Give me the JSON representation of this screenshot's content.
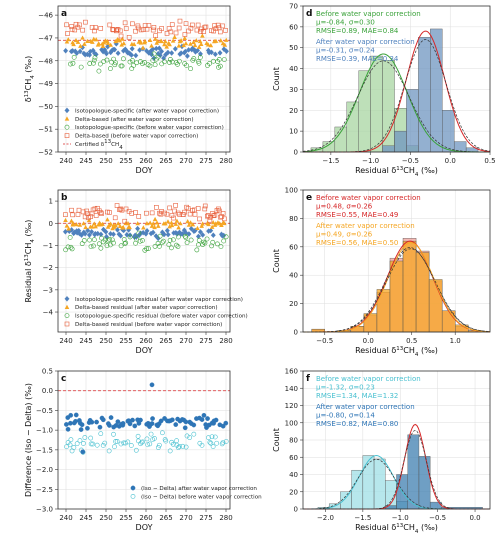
{
  "colors": {
    "iso_after": "#4f81bd",
    "delta_after": "#f5a623",
    "iso_before": "#3aa23a",
    "delta_before": "#e8603c",
    "certified": "#d62728",
    "hist_green": "#a8d5a2",
    "hist_blue": "#6f95c0",
    "hist_red": "#f2a09a",
    "hist_orange": "#f5a623",
    "hist_cyan": "#9fdfe6",
    "hist_dblue": "#3f7fb0",
    "diff_after": "#2e75b6",
    "diff_before": "#48c0d0"
  },
  "chart_data": [
    {
      "id": "a",
      "panel_label": "a",
      "type": "scatter",
      "xlabel": "DOY",
      "ylabel": "δ13CH4 (‰)",
      "ylabel_parts": [
        "δ",
        "13",
        "CH",
        "4",
        " (‰)"
      ],
      "xlim": [
        238,
        281
      ],
      "ylim": [
        -52,
        -45.6
      ],
      "xticks": [
        240,
        245,
        250,
        255,
        260,
        265,
        270,
        275,
        280
      ],
      "yticks": [
        -52,
        -51,
        -50,
        -49,
        -48,
        -47,
        -46
      ],
      "grid": true,
      "legend_position": "lower-center",
      "reference_line": {
        "y": -47.1,
        "label": "Certified δ13CH4"
      },
      "series": [
        {
          "name": "Isotopologue-specific (after water vapor correction)",
          "marker": "diamond",
          "mean": -47.6,
          "spread": 0.22
        },
        {
          "name": "Delta-based (after water vapor correction)",
          "marker": "triangle",
          "mean": -47.2,
          "spread": 0.2
        },
        {
          "name": "Isotopologue-specific (before water vapor correction)",
          "marker": "circle-open",
          "mean": -48.05,
          "spread": 0.3
        },
        {
          "name": "Delta-based (before water vapor correction)",
          "marker": "square-open",
          "mean": -46.6,
          "spread": 0.28
        }
      ],
      "legend_entries": [
        "Isotopologue-specific (after water vapor correction)",
        "Delta-based (after water vapor correction)",
        "Isotopologue-specific (before water vapor correction)",
        "Delta-based (before water vapor correction)",
        "Certified δ13CH4"
      ]
    },
    {
      "id": "b",
      "panel_label": "b",
      "type": "scatter",
      "xlabel": "DOY",
      "ylabel": "Residual δ13CH4 (‰)",
      "ylabel_parts": [
        "Residual δ",
        "13",
        "CH",
        "4",
        " (‰)"
      ],
      "xlim": [
        238,
        281
      ],
      "ylim": [
        -4.9,
        1.5
      ],
      "xticks": [
        240,
        245,
        250,
        255,
        260,
        265,
        270,
        275,
        280
      ],
      "yticks": [
        -4,
        -3,
        -2,
        -1,
        0,
        1
      ],
      "grid": true,
      "legend_position": "lower-center",
      "reference_line": {
        "y": 0
      },
      "series": [
        {
          "name": "Isotopologue-specific residual (after water vapor correction)",
          "marker": "diamond",
          "mean": -0.45,
          "spread": 0.2
        },
        {
          "name": "Delta-based residual (after water vapor correction)",
          "marker": "triangle",
          "mean": -0.05,
          "spread": 0.18
        },
        {
          "name": "Isotopologue-specific residual (before water vapor correction)",
          "marker": "circle-open",
          "mean": -0.9,
          "spread": 0.3
        },
        {
          "name": "Delta-based residual (before water vapor correction)",
          "marker": "square-open",
          "mean": 0.5,
          "spread": 0.28
        }
      ],
      "legend_entries": [
        "Isotopologue-specific residual (after water vapor correction)",
        "Delta-based residual (after water vapor correction)",
        "Isotopologue-specific residual (before water vapor correction)",
        "Delta-based residual (before water vapor correction)"
      ]
    },
    {
      "id": "c",
      "panel_label": "c",
      "type": "scatter",
      "xlabel": "DOY",
      "ylabel": "Difference (Iso − Delta) (‰)",
      "xlim": [
        238,
        281
      ],
      "ylim": [
        -3.0,
        0.5
      ],
      "xticks": [
        240,
        245,
        250,
        255,
        260,
        265,
        270,
        275,
        280
      ],
      "yticks": [
        -3.0,
        -2.5,
        -2.0,
        -1.5,
        -1.0,
        -0.5,
        0.0,
        0.5
      ],
      "ytick_labels": [
        "−3.0",
        "−2.5",
        "−2.0",
        "−1.5",
        "−1.0",
        "−0.5",
        "0.0",
        "0.5"
      ],
      "grid": true,
      "legend_position": "lower-right",
      "reference_line": {
        "y": 0
      },
      "series": [
        {
          "name": "(Iso − Delta) after water vapor correction",
          "marker": "circle-filled",
          "mean": -0.8,
          "spread": 0.14
        },
        {
          "name": "(Iso − Delta) before water vapor correction",
          "marker": "circle-open",
          "mean": -1.32,
          "spread": 0.22
        }
      ],
      "legend_entries": [
        "(Iso − Delta) after water vapor correction",
        "(Iso − Delta) before water vapor correction"
      ]
    },
    {
      "id": "d",
      "panel_label": "d",
      "type": "bar",
      "subtype": "histogram",
      "xlabel": "Residual δ13CH4 (‰)",
      "xlabel_parts": [
        "Residual δ",
        "13",
        "CH",
        "4",
        " (‰)"
      ],
      "ylabel": "Count",
      "xlim": [
        -1.85,
        0.5
      ],
      "ylim": [
        0,
        70
      ],
      "xticks": [
        -1.5,
        -1.0,
        -0.5,
        0.0,
        0.5
      ],
      "xtick_labels": [
        "−1.5",
        "−1.0",
        "−0.5",
        "0.0",
        "0.5"
      ],
      "yticks": [
        0,
        10,
        20,
        30,
        40,
        50,
        60,
        70
      ],
      "grid": true,
      "series": [
        {
          "name": "Before water vapor correction",
          "color_key": "hist_green",
          "bin_edges": [
            -1.75,
            -1.6,
            -1.45,
            -1.3,
            -1.15,
            -1.0,
            -0.85,
            -0.7,
            -0.55,
            -0.4
          ],
          "counts": [
            2,
            5,
            12,
            24,
            39,
            46,
            44,
            21,
            3
          ]
        },
        {
          "name": "After water vapor correction",
          "color_key": "hist_blue",
          "bin_edges": [
            -0.85,
            -0.7,
            -0.55,
            -0.4,
            -0.25,
            -0.1,
            0.05,
            0.2,
            0.35
          ],
          "counts": [
            3,
            10,
            30,
            55,
            59,
            20,
            5,
            2
          ]
        }
      ],
      "fits": [
        {
          "mu": -0.84,
          "sigma": 0.3,
          "peak": 47,
          "color_key": "iso_before"
        },
        {
          "mu": -0.31,
          "sigma": 0.24,
          "peak": 58,
          "color_key": "certified"
        }
      ],
      "annotations": [
        {
          "title": "Before water vapor correction",
          "line1": "μ=-0.84, σ=0.30",
          "line2": "RMSE=0.89, MAE=0.84",
          "color_key": "iso_before"
        },
        {
          "title": "After water vapor correction",
          "line1": "μ=-0.31, σ=0.24",
          "line2": "RMSE=0.39, MAE=0.34",
          "color_key": "iso_after"
        }
      ]
    },
    {
      "id": "e",
      "panel_label": "e",
      "type": "bar",
      "subtype": "histogram",
      "xlabel": "Residual δ13CH4 (‰)",
      "xlabel_parts": [
        "Residual δ",
        "13",
        "CH",
        "4",
        " (‰)"
      ],
      "ylabel": "Count",
      "xlim": [
        -0.75,
        1.4
      ],
      "ylim": [
        0,
        100
      ],
      "xticks": [
        -0.5,
        0.0,
        0.5,
        1.0
      ],
      "xtick_labels": [
        "−0.5",
        "0.0",
        "0.5",
        "1.0"
      ],
      "yticks": [
        0,
        20,
        40,
        60,
        80,
        100
      ],
      "grid": true,
      "series": [
        {
          "name": "Before water vapor correction",
          "color_key": "hist_red",
          "bin_edges": [
            -0.65,
            -0.5,
            -0.35,
            -0.2,
            -0.05,
            0.1,
            0.25,
            0.4,
            0.55,
            0.7,
            0.85,
            1.0,
            1.15,
            1.3
          ],
          "counts": [
            2,
            0,
            1,
            4,
            12,
            28,
            52,
            66,
            57,
            36,
            15,
            4,
            1
          ]
        },
        {
          "name": "After water vapor correction",
          "color_key": "hist_orange",
          "bin_edges": [
            -0.65,
            -0.5,
            -0.35,
            -0.2,
            -0.05,
            0.1,
            0.25,
            0.4,
            0.55,
            0.7,
            0.85,
            1.0,
            1.15,
            1.3
          ],
          "counts": [
            2,
            0,
            1,
            4,
            13,
            30,
            50,
            64,
            56,
            37,
            15,
            5,
            1
          ]
        }
      ],
      "fits": [
        {
          "mu": 0.48,
          "sigma": 0.26,
          "peak": 64,
          "color_key": "certified"
        },
        {
          "mu": 0.49,
          "sigma": 0.26,
          "peak": 63,
          "color_key": "delta_after"
        }
      ],
      "annotations": [
        {
          "title": "Before water vapor correction",
          "line1": "μ=0.48, σ=0.26",
          "line2": "RMSE=0.55, MAE=0.49",
          "color_key": "certified"
        },
        {
          "title": "After water vapor correction",
          "line1": "μ=0.49, σ=0.26",
          "line2": "RMSE=0.56, MAE=0.50",
          "color_key": "delta_after"
        }
      ]
    },
    {
      "id": "f",
      "panel_label": "f",
      "type": "bar",
      "subtype": "histogram",
      "xlabel": "Residual δ13CH4 (‰)",
      "xlabel_parts": [
        "Residual δ",
        "13",
        "CH",
        "4",
        " (‰)"
      ],
      "ylabel": "Count",
      "xlim": [
        -2.3,
        0.2
      ],
      "ylim": [
        0,
        160
      ],
      "xticks": [
        -2.0,
        -1.5,
        -1.0,
        -0.5,
        0.0
      ],
      "xtick_labels": [
        "−2.0",
        "−1.5",
        "−1.0",
        "−0.5",
        "0.0"
      ],
      "yticks": [
        0,
        20,
        40,
        60,
        80,
        100,
        120,
        140,
        160
      ],
      "grid": true,
      "series": [
        {
          "name": "Before water vapor correction",
          "color_key": "hist_cyan",
          "bin_edges": [
            -2.1,
            -1.95,
            -1.8,
            -1.65,
            -1.5,
            -1.35,
            -1.2,
            -1.05,
            -0.9
          ],
          "counts": [
            2,
            6,
            20,
            45,
            62,
            58,
            33,
            9
          ]
        },
        {
          "name": "After water vapor correction",
          "color_key": "hist_dblue",
          "bin_edges": [
            -1.2,
            -1.05,
            -0.9,
            -0.75,
            -0.6,
            -0.45,
            0.1
          ],
          "counts": [
            4,
            40,
            86,
            61,
            8,
            2
          ]
        }
      ],
      "fits": [
        {
          "mu": -1.32,
          "sigma": 0.23,
          "peak": 62,
          "color_key": "diff_before"
        },
        {
          "mu": -0.8,
          "sigma": 0.14,
          "peak": 98,
          "color_key": "certified"
        }
      ],
      "annotations": [
        {
          "title": "Before water vapor correction",
          "line1": "μ=-1.32, σ=0.23",
          "line2": "RMSE=1.34, MAE=1.32",
          "color_key": "diff_before"
        },
        {
          "title": "After water vapor correction",
          "line1": "μ=-0.80, σ=0.14",
          "line2": "RMSE=0.82, MAE=0.80",
          "color_key": "diff_after"
        }
      ]
    }
  ]
}
